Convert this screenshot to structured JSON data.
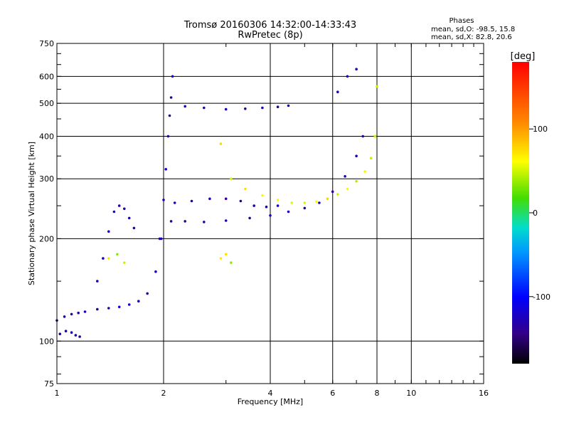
{
  "chart_data": {
    "type": "scatter",
    "title": "Tromsø 20160306 14:32:00-14:33:43",
    "subtitle": "RwPretec (8p)",
    "xlabel": "Frequency [MHz]",
    "ylabel": "Stationary phase Virtual Height [km]",
    "x_scale": "log",
    "y_scale": "log",
    "xlim": [
      1,
      16
    ],
    "ylim": [
      75,
      750
    ],
    "x_ticks": [
      1,
      2,
      4,
      6,
      8,
      10,
      16
    ],
    "x_tick_labels": [
      "1",
      "2",
      "4",
      "6",
      "8",
      "10",
      "16"
    ],
    "y_ticks": [
      75,
      100,
      200,
      300,
      400,
      500,
      600,
      750
    ],
    "y_tick_labels": [
      "75",
      "100",
      "200",
      "300",
      "400",
      "500",
      "600",
      "750"
    ],
    "grid": true,
    "stats": {
      "heading": "Phases",
      "line_o": "mean, sd,O: -98.5, 15.8",
      "line_x": "mean, sd,X:  82.8, 20.6"
    },
    "colorbar": {
      "label": "[deg]",
      "range": [
        -180,
        180
      ],
      "ticks": [
        100,
        0,
        -100
      ],
      "tick_labels": [
        "100",
        "0",
        "-100"
      ]
    },
    "series": [
      {
        "name": "O",
        "mean_phase": -98.5,
        "sd_phase": 15.8,
        "traces": [
          {
            "x": [
              1.0,
              1.05,
              1.1,
              1.15,
              1.2,
              1.3,
              1.4,
              1.5,
              1.6,
              1.7,
              1.8,
              1.9,
              1.97
            ],
            "y": [
              115,
              118,
              120,
              121,
              122,
              124,
              125,
              126,
              128,
              131,
              138,
              160,
              200
            ]
          },
          {
            "x": [
              1.02,
              1.06,
              1.1,
              1.13,
              1.16
            ],
            "y": [
              105,
              107,
              106,
              104,
              103
            ]
          },
          {
            "x": [
              1.3,
              1.35,
              1.4,
              1.45,
              1.5,
              1.55,
              1.6,
              1.65
            ],
            "y": [
              150,
              175,
              210,
              240,
              250,
              245,
              230,
              215
            ]
          },
          {
            "x": [
              1.95,
              2.0,
              2.03,
              2.06,
              2.08,
              2.1,
              2.12
            ],
            "y": [
              200,
              260,
              320,
              400,
              460,
              520,
              600
            ]
          },
          {
            "x": [
              2.1,
              2.3,
              2.6,
              3.0,
              3.5,
              4.0,
              4.5,
              5.0,
              5.5,
              6.0,
              6.5,
              7.0,
              7.3
            ],
            "y": [
              225,
              225,
              224,
              226,
              230,
              234,
              240,
              246,
              255,
              275,
              305,
              350,
              400
            ]
          },
          {
            "x": [
              2.15,
              2.4,
              2.7,
              3.0,
              3.3,
              3.6,
              3.9,
              4.2
            ],
            "y": [
              255,
              258,
              262,
              262,
              258,
              250,
              248,
              250
            ]
          },
          {
            "x": [
              2.3,
              2.6,
              3.0,
              3.4,
              3.8,
              4.2,
              4.5
            ],
            "y": [
              490,
              485,
              480,
              482,
              485,
              488,
              492
            ]
          },
          {
            "x": [
              6.2,
              6.6,
              7.0
            ],
            "y": [
              540,
              600,
              630
            ]
          }
        ]
      },
      {
        "name": "X",
        "mean_phase": 82.8,
        "sd_phase": 20.6,
        "traces": [
          {
            "x": [
              2.9,
              3.1,
              3.4,
              3.8,
              4.2,
              4.6,
              5.0,
              5.4,
              5.8,
              6.2,
              6.6,
              7.0,
              7.4,
              7.7,
              7.9,
              8.0
            ],
            "y": [
              380,
              300,
              280,
              268,
              260,
              255,
              255,
              257,
              262,
              270,
              280,
              295,
              315,
              345,
              400,
              560
            ]
          },
          {
            "x": [
              2.9,
              3.0,
              3.1
            ],
            "y": [
              175,
              180,
              170
            ]
          },
          {
            "x": [
              1.4,
              1.48,
              1.55
            ],
            "y": [
              175,
              180,
              170
            ]
          }
        ]
      }
    ]
  }
}
